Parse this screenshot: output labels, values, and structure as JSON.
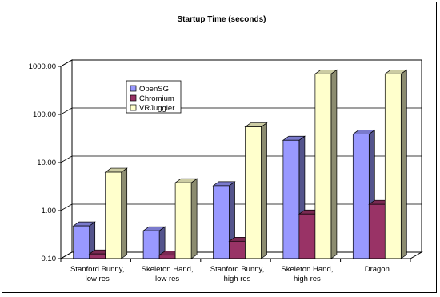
{
  "chart_data": {
    "type": "bar",
    "title": "Startup Time (seconds)",
    "xlabel": "",
    "ylabel": "",
    "yscale": "log",
    "ylim": [
      0.1,
      1000
    ],
    "yticks": [
      "0.10",
      "1.00",
      "10.00",
      "100.00",
      "1000.00"
    ],
    "grid": true,
    "legend_position": "left",
    "categories": [
      [
        "Stanford Bunny,",
        "low res"
      ],
      [
        "Skeleton Hand,",
        "low res"
      ],
      [
        "Stanford Bunny,",
        "high res"
      ],
      [
        "Skeleton Hand,",
        "high res"
      ],
      [
        "Dragon"
      ]
    ],
    "series": [
      {
        "name": "OpenSG",
        "color": "#9999ff",
        "values": [
          0.48,
          0.38,
          3.3,
          29,
          39
        ]
      },
      {
        "name": "Chromium",
        "color": "#993366",
        "values": [
          0.125,
          0.118,
          0.23,
          0.85,
          1.35
        ]
      },
      {
        "name": "VRJuggler",
        "color": "#ffffcc",
        "values": [
          6.3,
          3.8,
          55,
          700,
          700
        ]
      }
    ]
  }
}
